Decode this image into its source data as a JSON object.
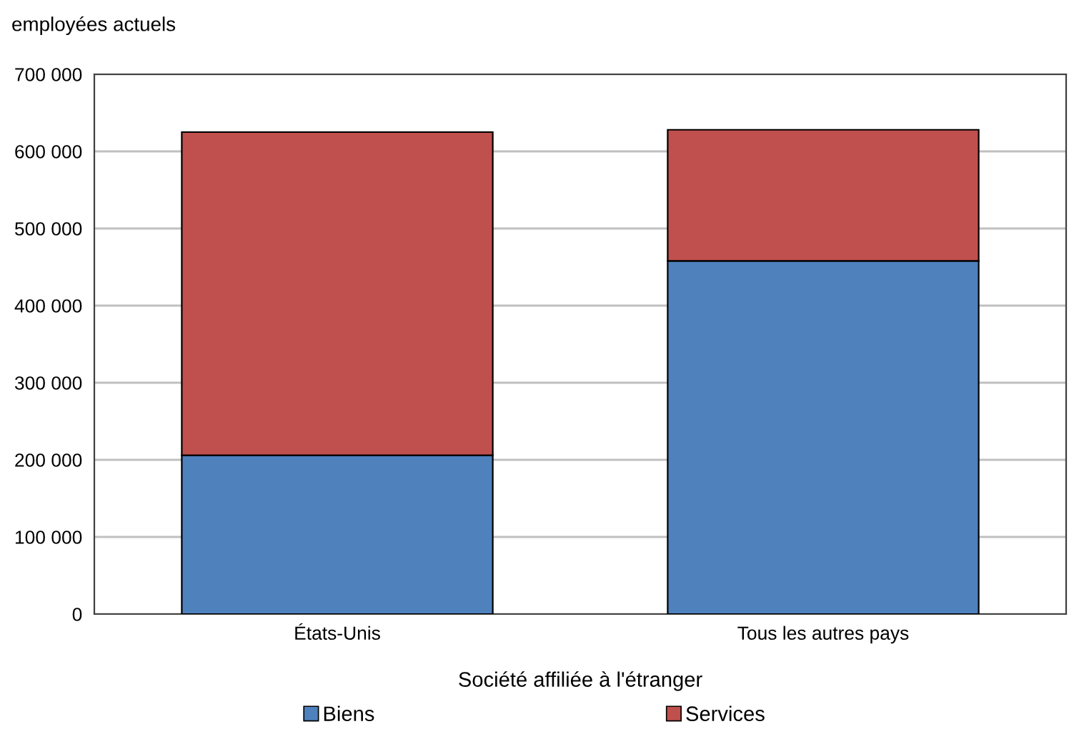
{
  "chart_data": {
    "type": "bar",
    "stacked": true,
    "ylabel": "employées actuels",
    "xlabel": "Société affiliée à l'étranger",
    "categories": [
      "États-Unis",
      "Tous les autres pays"
    ],
    "series": [
      {
        "name": "Biens",
        "color": "#4f81bd",
        "values": [
          206000,
          458000
        ]
      },
      {
        "name": "Services",
        "color": "#c0504d",
        "values": [
          419000,
          170000
        ]
      }
    ],
    "ylim": [
      0,
      700000
    ],
    "yticks": [
      0,
      {
        "value": 100000,
        "label": "100 000"
      },
      {
        "value": 200000,
        "label": "200 000"
      },
      {
        "value": 300000,
        "label": "300 000"
      },
      {
        "value": 400000,
        "label": "400 000"
      },
      {
        "value": 500000,
        "label": "500 000"
      },
      {
        "value": 600000,
        "label": "600 000"
      },
      {
        "value": 700000,
        "label": "700 000"
      }
    ],
    "grid": "y",
    "legend": "bottom"
  }
}
